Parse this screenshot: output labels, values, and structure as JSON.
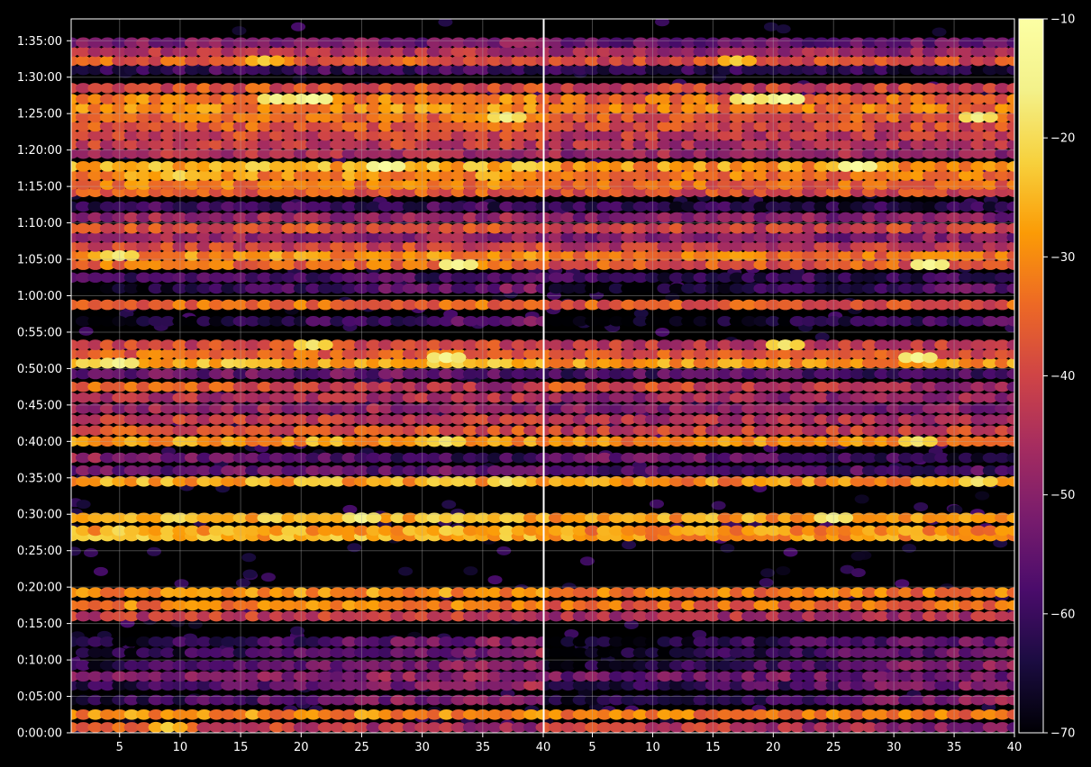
{
  "chart_data": {
    "type": "heatmap",
    "title": "",
    "xlabel": "",
    "ylabel": "",
    "panels": [
      {
        "name": "",
        "x_range": [
          1,
          40
        ],
        "x_ticks": [
          5,
          10,
          15,
          20,
          25,
          30,
          35,
          40
        ]
      },
      {
        "name": "",
        "x_range": [
          1,
          40
        ],
        "x_ticks": [
          5,
          10,
          15,
          20,
          25,
          30,
          35,
          40
        ]
      }
    ],
    "y_range_seconds": [
      0,
      5880
    ],
    "y_ticks": [
      "0:00:00",
      "0:05:00",
      "0:10:00",
      "0:15:00",
      "0:20:00",
      "0:25:00",
      "0:30:00",
      "0:35:00",
      "0:40:00",
      "0:45:00",
      "0:50:00",
      "0:55:00",
      "1:00:00",
      "1:05:00",
      "1:10:00",
      "1:15:00",
      "1:20:00",
      "1:25:00",
      "1:30:00",
      "1:35:00"
    ],
    "colorbar": {
      "colormap": "inferno",
      "range": [
        -70,
        -10
      ],
      "ticks": [
        "−10",
        "−20",
        "−30",
        "−40",
        "−50",
        "−60",
        "−70"
      ]
    },
    "grid": true,
    "bands": [
      {
        "time": "0:00:45",
        "level": -42,
        "pattern": "left-strong"
      },
      {
        "time": "0:02:30",
        "level": -30,
        "pattern": "uniform"
      },
      {
        "time": "0:04:30",
        "level": -55,
        "pattern": "right-strong"
      },
      {
        "time": "0:06:30",
        "level": -55,
        "pattern": "right-strong"
      },
      {
        "time": "0:07:45",
        "level": -50,
        "pattern": "uniform"
      },
      {
        "time": "0:09:15",
        "level": -55,
        "pattern": "right-strong"
      },
      {
        "time": "0:11:00",
        "level": -58,
        "pattern": "right-strong"
      },
      {
        "time": "0:12:30",
        "level": -58,
        "pattern": "right-strong"
      },
      {
        "time": "0:16:00",
        "level": -42,
        "pattern": "uniform"
      },
      {
        "time": "0:17:30",
        "level": -32,
        "pattern": "uniform"
      },
      {
        "time": "0:19:15",
        "level": -30,
        "pattern": "uniform"
      },
      {
        "time": "0:27:00",
        "level": -26,
        "pattern": "uniform"
      },
      {
        "time": "0:27:45",
        "level": -27,
        "pattern": "uniform"
      },
      {
        "time": "0:29:30",
        "level": -25,
        "pattern": "uniform"
      },
      {
        "time": "0:34:30",
        "level": -27,
        "pattern": "uniform"
      },
      {
        "time": "0:36:00",
        "level": -55,
        "pattern": "uniform"
      },
      {
        "time": "0:37:45",
        "level": -55,
        "pattern": "left-strong"
      },
      {
        "time": "0:40:00",
        "level": -28,
        "pattern": "uniform"
      },
      {
        "time": "0:41:30",
        "level": -38,
        "pattern": "uniform"
      },
      {
        "time": "0:43:00",
        "level": -42,
        "pattern": "uniform"
      },
      {
        "time": "0:44:30",
        "level": -48,
        "pattern": "uniform"
      },
      {
        "time": "0:46:00",
        "level": -45,
        "pattern": "uniform"
      },
      {
        "time": "0:47:30",
        "level": -40,
        "pattern": "left-strong"
      },
      {
        "time": "0:49:15",
        "level": -55,
        "pattern": "uniform"
      },
      {
        "time": "0:50:45",
        "level": -26,
        "pattern": "uniform"
      },
      {
        "time": "0:52:00",
        "level": -35,
        "pattern": "uniform"
      },
      {
        "time": "0:53:15",
        "level": -40,
        "pattern": "uniform"
      },
      {
        "time": "0:56:30",
        "level": -62,
        "pattern": "right-strong"
      },
      {
        "time": "0:58:45",
        "level": -34,
        "pattern": "uniform"
      },
      {
        "time": "1:01:00",
        "level": -60,
        "pattern": "right-strong"
      },
      {
        "time": "1:02:30",
        "level": -58,
        "pattern": "uniform"
      },
      {
        "time": "1:04:15",
        "level": -34,
        "pattern": "uniform"
      },
      {
        "time": "1:05:30",
        "level": -30,
        "pattern": "uniform"
      },
      {
        "time": "1:06:45",
        "level": -40,
        "pattern": "uniform"
      },
      {
        "time": "1:08:00",
        "level": -48,
        "pattern": "uniform"
      },
      {
        "time": "1:09:15",
        "level": -38,
        "pattern": "uniform"
      },
      {
        "time": "1:10:45",
        "level": -48,
        "pattern": "uniform"
      },
      {
        "time": "1:12:15",
        "level": -60,
        "pattern": "uniform"
      },
      {
        "time": "1:14:15",
        "level": -36,
        "pattern": "uniform"
      },
      {
        "time": "1:15:15",
        "level": -32,
        "pattern": "uniform"
      },
      {
        "time": "1:16:30",
        "level": -30,
        "pattern": "uniform"
      },
      {
        "time": "1:17:45",
        "level": -26,
        "pattern": "uniform"
      },
      {
        "time": "1:19:30",
        "level": -45,
        "pattern": "uniform"
      },
      {
        "time": "1:20:45",
        "level": -42,
        "pattern": "uniform"
      },
      {
        "time": "1:22:00",
        "level": -40,
        "pattern": "uniform"
      },
      {
        "time": "1:23:15",
        "level": -36,
        "pattern": "uniform"
      },
      {
        "time": "1:24:30",
        "level": -34,
        "pattern": "uniform"
      },
      {
        "time": "1:25:45",
        "level": -30,
        "pattern": "uniform"
      },
      {
        "time": "1:27:00",
        "level": -32,
        "pattern": "uniform"
      },
      {
        "time": "1:28:30",
        "level": -38,
        "pattern": "uniform"
      },
      {
        "time": "1:31:00",
        "level": -60,
        "pattern": "uniform"
      },
      {
        "time": "1:32:15",
        "level": -36,
        "pattern": "uniform"
      },
      {
        "time": "1:33:30",
        "level": -45,
        "pattern": "uniform"
      },
      {
        "time": "1:34:45",
        "level": -52,
        "pattern": "uniform"
      }
    ],
    "hotspots": [
      {
        "x": 9,
        "time": "0:00:45",
        "level": -22,
        "panel": "left"
      },
      {
        "x": 5,
        "time": "0:27:45",
        "level": -20,
        "panel": "left"
      },
      {
        "x": 25,
        "time": "0:29:30",
        "level": -15,
        "panel": "both"
      },
      {
        "x": 37,
        "time": "0:34:30",
        "level": -18,
        "panel": "both"
      },
      {
        "x": 32,
        "time": "0:40:00",
        "level": -18,
        "panel": "both"
      },
      {
        "x": 5,
        "time": "0:50:45",
        "level": -14,
        "panel": "left"
      },
      {
        "x": 32,
        "time": "0:51:30",
        "level": -14,
        "panel": "both"
      },
      {
        "x": 21,
        "time": "0:53:15",
        "level": -18,
        "panel": "both"
      },
      {
        "x": 33,
        "time": "1:04:15",
        "level": -13,
        "panel": "both"
      },
      {
        "x": 5,
        "time": "1:05:30",
        "level": -17,
        "panel": "left"
      },
      {
        "x": 27,
        "time": "1:17:45",
        "level": -11,
        "panel": "both"
      },
      {
        "x": 10,
        "time": "1:16:30",
        "level": -20,
        "panel": "left"
      },
      {
        "x": 21,
        "time": "1:27:00",
        "level": -12,
        "panel": "both"
      },
      {
        "x": 18,
        "time": "1:27:00",
        "level": -15,
        "panel": "both"
      },
      {
        "x": 37,
        "time": "1:24:30",
        "level": -16,
        "panel": "both"
      },
      {
        "x": 17,
        "time": "1:32:15",
        "level": -22,
        "panel": "both"
      }
    ]
  }
}
